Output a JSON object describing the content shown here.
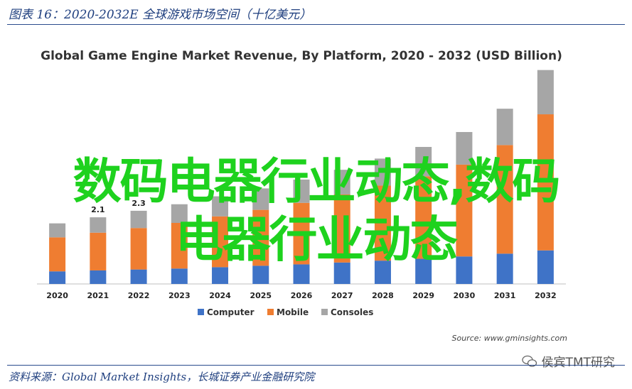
{
  "caption": "图表 16：2020-2032E 全球游戏市场空间（十亿美元）",
  "footer": "资料来源：Global Market Insights，长城证券产业金融研究院",
  "source_note": "Source: www.gminsights.com",
  "watermark_line1": "数码电器行业动态,数码",
  "watermark_line2": "电器行业动态",
  "wechat_account": "侯宾TMT研究",
  "colors": {
    "computer": "#3f73c7",
    "mobile": "#ef7d31",
    "consoles": "#a6a6a6",
    "caption": "#1f3f7f",
    "watermark": "#1ed21e"
  },
  "chart_data": {
    "type": "bar",
    "stacked": true,
    "title": "Global Game Engine Market Revenue, By Platform, 2020 - 2032 (USD Billion)",
    "categories": [
      "2020",
      "2021",
      "2022",
      "2023",
      "2024",
      "2025",
      "2026",
      "2027",
      "2028",
      "2029",
      "2030",
      "2031",
      "2032"
    ],
    "series": [
      {
        "name": "Computer",
        "values": [
          0.27,
          0.29,
          0.31,
          0.33,
          0.36,
          0.39,
          0.42,
          0.46,
          0.5,
          0.54,
          0.59,
          0.65,
          0.72
        ]
      },
      {
        "name": "Mobile",
        "values": [
          0.73,
          0.81,
          0.89,
          0.98,
          1.09,
          1.2,
          1.32,
          1.46,
          1.61,
          1.77,
          1.97,
          2.33,
          2.92
        ]
      },
      {
        "name": "Consoles",
        "values": [
          0.3,
          0.33,
          0.37,
          0.4,
          0.43,
          0.46,
          0.5,
          0.53,
          0.58,
          0.63,
          0.7,
          0.78,
          0.95
        ]
      }
    ],
    "data_labels": {
      "1": "2.1",
      "2": "2.3"
    },
    "ylim": [
      0,
      4.6
    ],
    "legend": "bottom"
  }
}
